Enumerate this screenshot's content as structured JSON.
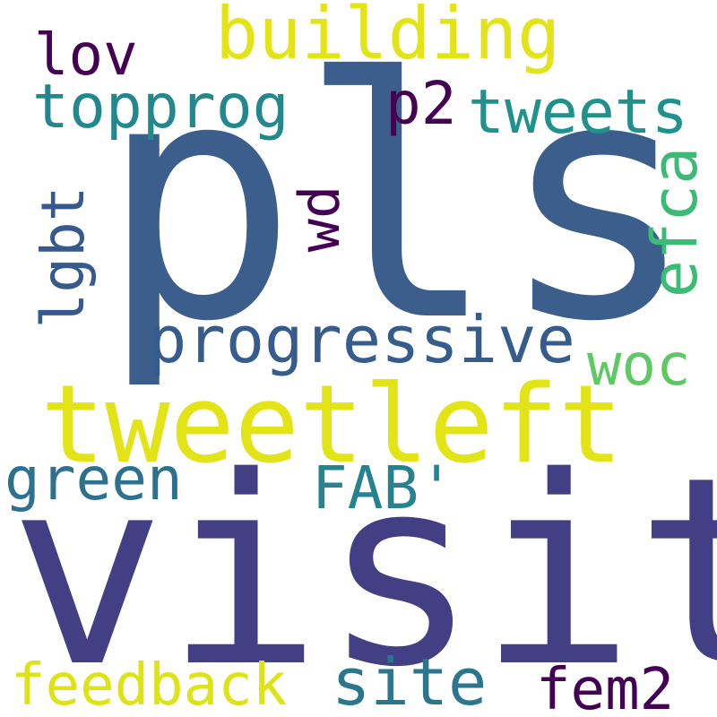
{
  "words": {
    "pls": {
      "text": "pls",
      "color": "#3b5e8c"
    },
    "visit": {
      "text": "visit",
      "color": "#423f85"
    },
    "tweetleft": {
      "text": "tweetleft",
      "color": "#e2e418"
    },
    "building": {
      "text": "building",
      "color": "#e2e418"
    },
    "progressive": {
      "text": "progressive",
      "color": "#365c8d"
    },
    "topprog": {
      "text": "topprog",
      "color": "#23888e"
    },
    "tweets": {
      "text": "tweets",
      "color": "#21918c"
    },
    "lov": {
      "text": "lov",
      "color": "#440154"
    },
    "p2": {
      "text": "p2",
      "color": "#440154"
    },
    "lgbt": {
      "text": "lgbt",
      "color": "#375a8c"
    },
    "efca": {
      "text": "efca",
      "color": "#3bbb75"
    },
    "wd": {
      "text": "wd",
      "color": "#440154"
    },
    "woc": {
      "text": "woc",
      "color": "#5ec962"
    },
    "green": {
      "text": "green",
      "color": "#2c728e"
    },
    "fab": {
      "text": "FAB'",
      "color": "#26828e"
    },
    "site": {
      "text": "site",
      "color": "#2a768e"
    },
    "feedback": {
      "text": "feedback",
      "color": "#dde318"
    },
    "fem2": {
      "text": "fem2",
      "color": "#440154"
    }
  }
}
